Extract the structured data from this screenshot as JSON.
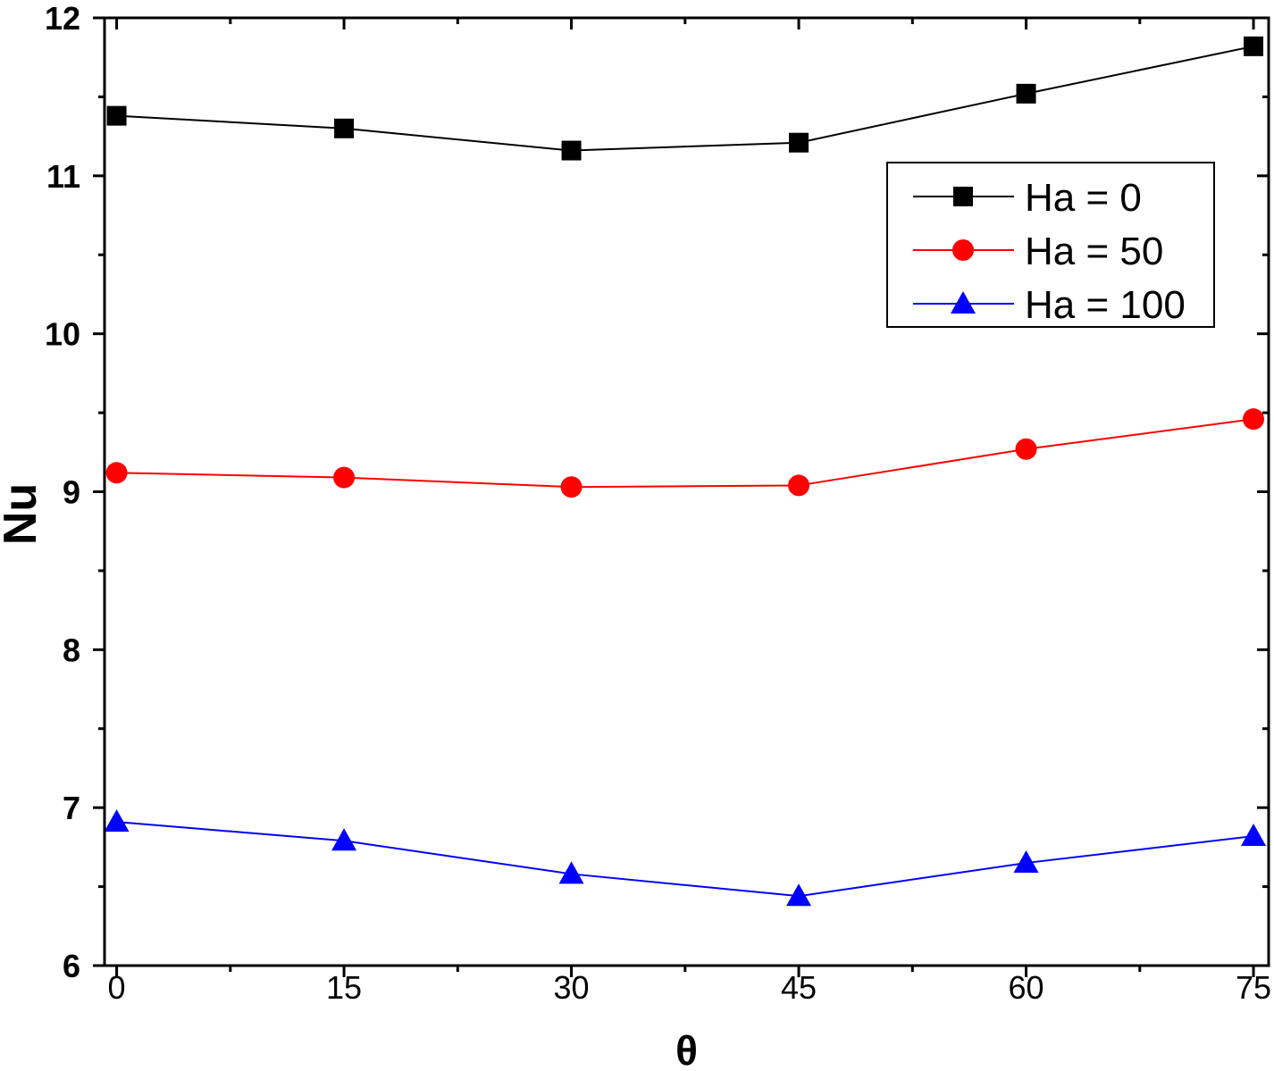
{
  "chart_data": {
    "type": "line",
    "title": "",
    "xlabel": "θ",
    "ylabel": "Nu",
    "x": [
      0,
      15,
      30,
      45,
      60,
      75
    ],
    "xlim": [
      -0.8,
      76
    ],
    "ylim": [
      6,
      12
    ],
    "xticks": [
      0,
      15,
      30,
      45,
      60,
      75
    ],
    "xtick_labels": [
      "0",
      "15",
      "30",
      "45",
      "60",
      "75"
    ],
    "yticks": [
      6,
      7,
      8,
      9,
      10,
      11,
      12
    ],
    "ytick_labels": [
      "6",
      "7",
      "8",
      "9",
      "10",
      "11",
      "12"
    ],
    "grid": false,
    "legend_position": "top-right",
    "series": [
      {
        "name": "Ha = 0",
        "marker": "square",
        "color": "#000000",
        "values": [
          11.38,
          11.3,
          11.16,
          11.21,
          11.52,
          11.82
        ]
      },
      {
        "name": "Ha = 50",
        "marker": "circle",
        "color": "#ff0000",
        "values": [
          9.12,
          9.09,
          9.03,
          9.04,
          9.27,
          9.46
        ]
      },
      {
        "name": "Ha = 100",
        "marker": "triangle",
        "color": "#0000ff",
        "values": [
          6.91,
          6.79,
          6.58,
          6.44,
          6.65,
          6.82
        ]
      }
    ]
  }
}
